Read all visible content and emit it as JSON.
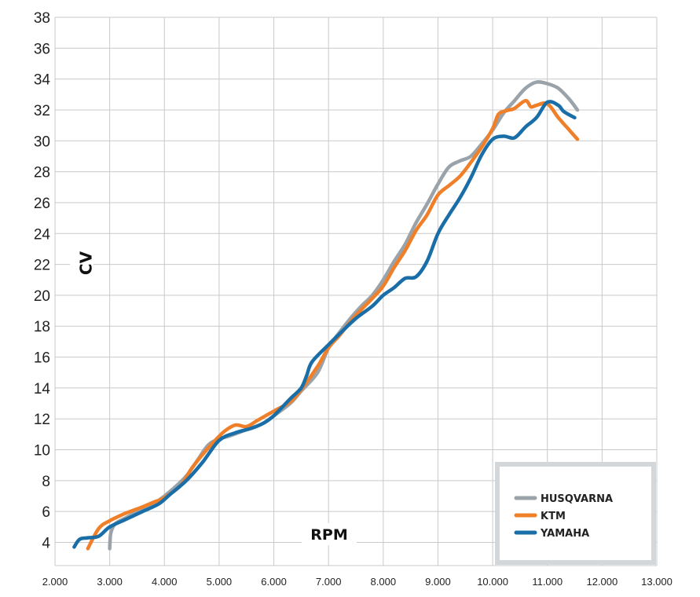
{
  "chart_data": {
    "type": "line",
    "xlabel": "RPM",
    "ylabel": "CV",
    "xlim": [
      2000,
      13000
    ],
    "ylim": [
      2.5,
      38
    ],
    "x_ticks": [
      2000,
      3000,
      4000,
      5000,
      6000,
      7000,
      8000,
      9000,
      10000,
      11000,
      12000,
      13000
    ],
    "x_tick_labels": [
      "2.000",
      "3.000",
      "4.000",
      "5.000",
      "6.000",
      "7.000",
      "8.000",
      "9.000",
      "10.000",
      "11.000",
      "12.000",
      "13.000"
    ],
    "y_ticks": [
      4,
      6,
      8,
      10,
      12,
      14,
      16,
      18,
      20,
      22,
      24,
      26,
      28,
      30,
      32,
      34,
      36,
      38
    ],
    "y_tick_labels": [
      "4",
      "6",
      "8",
      "10",
      "12",
      "14",
      "16",
      "18",
      "20",
      "22",
      "24",
      "26",
      "28",
      "30",
      "32",
      "34",
      "36",
      "38"
    ],
    "grid": true,
    "legend_position": "bottom-right",
    "series": [
      {
        "name": "HUSQVARNA",
        "color": "#9aa3a9",
        "points": [
          [
            3000,
            3.6
          ],
          [
            3020,
            4.6
          ],
          [
            3100,
            5.2
          ],
          [
            3300,
            5.6
          ],
          [
            3500,
            6.0
          ],
          [
            3800,
            6.5
          ],
          [
            4000,
            7.0
          ],
          [
            4200,
            7.6
          ],
          [
            4400,
            8.3
          ],
          [
            4600,
            9.3
          ],
          [
            4800,
            10.3
          ],
          [
            5000,
            10.7
          ],
          [
            5200,
            10.9
          ],
          [
            5500,
            11.3
          ],
          [
            5800,
            11.7
          ],
          [
            6000,
            12.2
          ],
          [
            6300,
            13.0
          ],
          [
            6500,
            13.8
          ],
          [
            6800,
            15.0
          ],
          [
            7000,
            16.6
          ],
          [
            7200,
            17.6
          ],
          [
            7400,
            18.5
          ],
          [
            7600,
            19.3
          ],
          [
            7800,
            20.0
          ],
          [
            8000,
            21.0
          ],
          [
            8200,
            22.2
          ],
          [
            8400,
            23.3
          ],
          [
            8600,
            24.7
          ],
          [
            8800,
            25.9
          ],
          [
            9000,
            27.2
          ],
          [
            9200,
            28.3
          ],
          [
            9400,
            28.7
          ],
          [
            9600,
            29.0
          ],
          [
            9800,
            29.8
          ],
          [
            10000,
            30.7
          ],
          [
            10200,
            31.8
          ],
          [
            10400,
            32.6
          ],
          [
            10600,
            33.4
          ],
          [
            10800,
            33.8
          ],
          [
            11000,
            33.7
          ],
          [
            11200,
            33.4
          ],
          [
            11400,
            32.7
          ],
          [
            11550,
            32.0
          ]
        ]
      },
      {
        "name": "KTM",
        "color": "#ef7f28",
        "points": [
          [
            2600,
            3.6
          ],
          [
            2800,
            4.9
          ],
          [
            3000,
            5.4
          ],
          [
            3300,
            5.9
          ],
          [
            3600,
            6.3
          ],
          [
            3800,
            6.6
          ],
          [
            4000,
            6.9
          ],
          [
            4300,
            7.7
          ],
          [
            4500,
            8.8
          ],
          [
            4700,
            9.7
          ],
          [
            4900,
            10.5
          ],
          [
            5100,
            11.2
          ],
          [
            5300,
            11.6
          ],
          [
            5500,
            11.5
          ],
          [
            5700,
            11.9
          ],
          [
            6000,
            12.5
          ],
          [
            6300,
            13.1
          ],
          [
            6500,
            13.9
          ],
          [
            6800,
            15.4
          ],
          [
            7000,
            16.6
          ],
          [
            7200,
            17.4
          ],
          [
            7500,
            18.7
          ],
          [
            7800,
            19.8
          ],
          [
            8000,
            20.6
          ],
          [
            8200,
            21.8
          ],
          [
            8400,
            22.9
          ],
          [
            8600,
            24.2
          ],
          [
            8800,
            25.2
          ],
          [
            9000,
            26.5
          ],
          [
            9200,
            27.1
          ],
          [
            9400,
            27.7
          ],
          [
            9600,
            28.6
          ],
          [
            9800,
            29.6
          ],
          [
            10000,
            30.8
          ],
          [
            10100,
            31.7
          ],
          [
            10200,
            31.9
          ],
          [
            10300,
            32.0
          ],
          [
            10400,
            32.1
          ],
          [
            10600,
            32.6
          ],
          [
            10700,
            32.2
          ],
          [
            10800,
            32.3
          ],
          [
            11000,
            32.4
          ],
          [
            11200,
            31.5
          ],
          [
            11400,
            30.7
          ],
          [
            11550,
            30.1
          ]
        ]
      },
      {
        "name": "YAMAHA",
        "color": "#1a6ea8",
        "points": [
          [
            2350,
            3.7
          ],
          [
            2450,
            4.2
          ],
          [
            2600,
            4.3
          ],
          [
            2800,
            4.4
          ],
          [
            3000,
            5.0
          ],
          [
            3300,
            5.5
          ],
          [
            3600,
            6.0
          ],
          [
            3900,
            6.5
          ],
          [
            4100,
            7.1
          ],
          [
            4400,
            8.0
          ],
          [
            4700,
            9.2
          ],
          [
            5000,
            10.6
          ],
          [
            5300,
            11.1
          ],
          [
            5600,
            11.4
          ],
          [
            5800,
            11.7
          ],
          [
            6000,
            12.2
          ],
          [
            6300,
            13.3
          ],
          [
            6500,
            14.0
          ],
          [
            6600,
            14.8
          ],
          [
            6700,
            15.7
          ],
          [
            7000,
            16.8
          ],
          [
            7200,
            17.5
          ],
          [
            7500,
            18.5
          ],
          [
            7800,
            19.3
          ],
          [
            8000,
            20.0
          ],
          [
            8200,
            20.5
          ],
          [
            8400,
            21.1
          ],
          [
            8600,
            21.2
          ],
          [
            8800,
            22.2
          ],
          [
            9000,
            24.0
          ],
          [
            9200,
            25.2
          ],
          [
            9400,
            26.3
          ],
          [
            9600,
            27.6
          ],
          [
            9800,
            29.1
          ],
          [
            10000,
            30.1
          ],
          [
            10200,
            30.3
          ],
          [
            10400,
            30.2
          ],
          [
            10600,
            30.9
          ],
          [
            10800,
            31.5
          ],
          [
            11000,
            32.5
          ],
          [
            11200,
            32.3
          ],
          [
            11300,
            31.9
          ],
          [
            11500,
            31.5
          ]
        ]
      }
    ]
  }
}
